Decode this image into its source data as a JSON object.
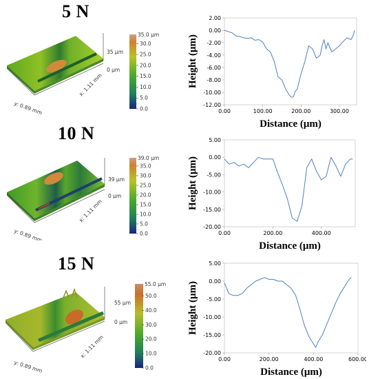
{
  "panels": [
    {
      "load": "5 N",
      "surface": {
        "axis_x": "y: 0.89 mm",
        "axis_y": "x: 1.11 mm",
        "z_top": "35 μm",
        "z_bottom": "0 μm",
        "scale_max": "35.0 μm",
        "scale_ticks": [
          "30.0",
          "25.0",
          "20.0",
          "15.0",
          "10.0",
          "5.0",
          "0.0"
        ]
      },
      "chart_data": {
        "type": "line",
        "xlabel": "Distance (μm)",
        "ylabel": "Height (μm)",
        "xlim": [
          0,
          345
        ],
        "ylim": [
          -12,
          2
        ],
        "xticks": [
          "0.00",
          "100.00",
          "200.00",
          "300.00"
        ],
        "xtick_values": [
          0,
          100,
          200,
          300
        ],
        "yticks": [
          "2.00",
          "0.00",
          "-2.00",
          "-4.00",
          "-6.00",
          "-8.00",
          "-10.00",
          "-12.00"
        ],
        "ytick_values": [
          2,
          0,
          -2,
          -4,
          -6,
          -8,
          -10,
          -12
        ],
        "color": "#4f7fc0",
        "x": [
          0,
          10,
          20,
          30,
          40,
          50,
          60,
          70,
          80,
          90,
          100,
          110,
          120,
          130,
          140,
          150,
          160,
          170,
          175,
          180,
          185,
          190,
          200,
          210,
          220,
          230,
          240,
          250,
          255,
          260,
          265,
          270,
          280,
          290,
          300,
          310,
          320,
          330,
          335,
          340
        ],
        "y": [
          0,
          -0.2,
          -0.4,
          -0.9,
          -1.0,
          -1.2,
          -1.3,
          -1.2,
          -1.6,
          -1.5,
          -1.9,
          -3.0,
          -3.5,
          -5.0,
          -7.5,
          -8.0,
          -9.5,
          -10.5,
          -10.8,
          -10.7,
          -9.8,
          -9.5,
          -7.0,
          -5.0,
          -2.5,
          -3.0,
          -4.5,
          -4.0,
          -2.5,
          -1.5,
          -3.0,
          -2.0,
          -3.5,
          -3.0,
          -2.5,
          -1.8,
          -1.2,
          -1.5,
          -1.0,
          0.0
        ]
      }
    },
    {
      "load": "10 N",
      "surface": {
        "axis_x": "y: 0.89 mm",
        "axis_y": "x: 1.11 mm",
        "z_top": "39 μm",
        "z_bottom": "0 μm",
        "scale_max": "39.0 μm",
        "scale_ticks": [
          "35.0",
          "30.0",
          "25.0",
          "20.0",
          "15.0",
          "10.0",
          "5.0",
          "0.0"
        ]
      },
      "chart_data": {
        "type": "line",
        "xlabel": "Distance (μm)",
        "ylabel": "Height (μm)",
        "xlim": [
          0,
          540
        ],
        "ylim": [
          -20,
          5
        ],
        "xticks": [
          "0.00",
          "200.00",
          "400.00"
        ],
        "xtick_values": [
          0,
          200,
          400
        ],
        "yticks": [
          "5.00",
          "0.00",
          "-5.00",
          "-10.00",
          "-15.00",
          "-20.00"
        ],
        "ytick_values": [
          5,
          0,
          -5,
          -10,
          -15,
          -20
        ],
        "color": "#4f7fc0",
        "x": [
          0,
          20,
          40,
          60,
          80,
          100,
          120,
          140,
          160,
          180,
          200,
          220,
          240,
          260,
          280,
          300,
          320,
          340,
          360,
          380,
          400,
          420,
          440,
          460,
          480,
          500,
          520,
          530
        ],
        "y": [
          -0.5,
          -2.0,
          -1.5,
          -2.5,
          -2.0,
          -3.0,
          -1.5,
          0.0,
          -0.5,
          -0.5,
          -0.5,
          -4.5,
          -8.0,
          -12.0,
          -17.5,
          -18.5,
          -14.0,
          -3.0,
          -0.5,
          -4.0,
          -6.5,
          -5.5,
          0.0,
          -2.5,
          -5.5,
          -2.0,
          -0.5,
          -0.5
        ]
      }
    },
    {
      "load": "15 N",
      "surface": {
        "axis_x": "y: 0.89 mm",
        "axis_y": "x: 1.11 mm",
        "z_top": "55 μm",
        "z_bottom": "0 μm",
        "scale_max": "55.0 μm",
        "scale_ticks": [
          "50.0",
          "40.0",
          "30.0",
          "20.0",
          "10.0",
          "0.0"
        ]
      },
      "chart_data": {
        "type": "line",
        "xlabel": "Distance (μm)",
        "ylabel": "Height (μm)",
        "xlim": [
          0,
          600
        ],
        "ylim": [
          -20,
          5
        ],
        "xticks": [
          "0.00",
          "200.00",
          "400.00",
          "600.00"
        ],
        "xtick_values": [
          0,
          200,
          400,
          600
        ],
        "yticks": [
          "5.00",
          "0.00",
          "-5.00",
          "-10.00",
          "-15.00",
          "-20.00"
        ],
        "ytick_values": [
          5,
          0,
          -5,
          -10,
          -15,
          -20
        ],
        "color": "#4f7fc0",
        "x": [
          0,
          20,
          40,
          60,
          80,
          100,
          120,
          140,
          160,
          180,
          200,
          220,
          240,
          260,
          280,
          300,
          320,
          340,
          360,
          380,
          400,
          410,
          420,
          440,
          460,
          480,
          500,
          520,
          540,
          560,
          570
        ],
        "y": [
          -0.5,
          -3.5,
          -4.0,
          -4.0,
          -3.5,
          -2.0,
          -1.0,
          0.0,
          0.5,
          1.0,
          0.5,
          0.5,
          0.0,
          0.0,
          -1.0,
          -2.0,
          -4.0,
          -8.0,
          -12.5,
          -15.5,
          -17.5,
          -18.5,
          -17.0,
          -15.0,
          -12.0,
          -9.0,
          -6.0,
          -3.5,
          -1.5,
          0.5,
          1.0
        ]
      }
    }
  ]
}
